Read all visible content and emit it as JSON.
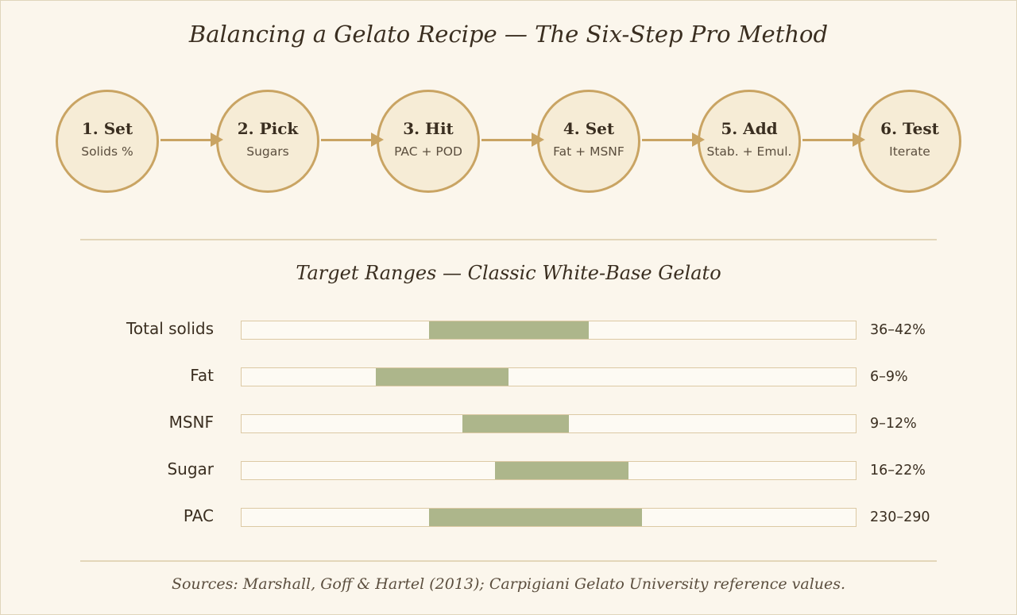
{
  "title": "Balancing a Gelato Recipe — The Six-Step Pro Method",
  "colors": {
    "background": "#fbf6ec",
    "step_fill": "#f6ecd6",
    "accent_gold": "#c9a463",
    "range_fill": "#adb68b",
    "text_dark": "#3a2e20"
  },
  "steps": [
    {
      "label": "1. Set",
      "sub": "Solids %"
    },
    {
      "label": "2. Pick",
      "sub": "Sugars"
    },
    {
      "label": "3. Hit",
      "sub": "PAC + POD"
    },
    {
      "label": "4. Set",
      "sub": "Fat + MSNF"
    },
    {
      "label": "5. Add",
      "sub": "Stab. + Emul."
    },
    {
      "label": "6. Test",
      "sub": "Iterate"
    }
  ],
  "ranges": {
    "title": "Target Ranges — Classic White-Base Gelato",
    "rows": [
      {
        "label": "Total solids",
        "value_text": "36–42%",
        "start_frac": 0.305,
        "end_frac": 0.565
      },
      {
        "label": "Fat",
        "value_text": "6–9%",
        "start_frac": 0.218,
        "end_frac": 0.435
      },
      {
        "label": "MSNF",
        "value_text": "9–12%",
        "start_frac": 0.359,
        "end_frac": 0.533
      },
      {
        "label": "Sugar",
        "value_text": "16–22%",
        "start_frac": 0.413,
        "end_frac": 0.63
      },
      {
        "label": "PAC",
        "value_text": "230–290",
        "start_frac": 0.305,
        "end_frac": 0.652
      }
    ]
  },
  "sources": "Sources: Marshall, Goff & Hartel (2013); Carpigiani Gelato University reference values."
}
